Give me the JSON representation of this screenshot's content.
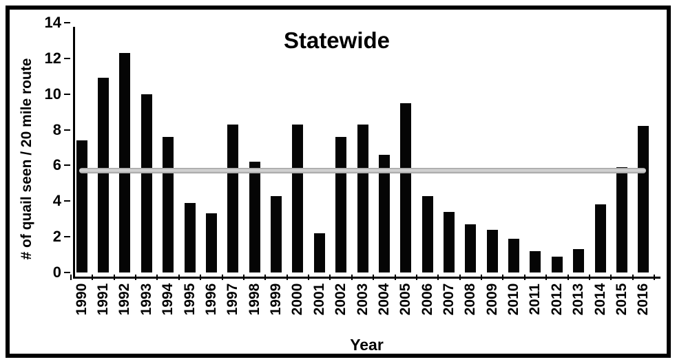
{
  "chart_data": {
    "type": "bar",
    "title": "Statewide",
    "xlabel": "Year",
    "ylabel": "# of quail seen / 20 mile route",
    "categories": [
      "1990",
      "1991",
      "1992",
      "1993",
      "1994",
      "1995",
      "1996",
      "1997",
      "1998",
      "1999",
      "2000",
      "2001",
      "2002",
      "2003",
      "2004",
      "2005",
      "2006",
      "2007",
      "2008",
      "2009",
      "2010",
      "2011",
      "2012",
      "2013",
      "2014",
      "2015",
      "2016"
    ],
    "values": [
      7.4,
      10.9,
      12.3,
      10.0,
      7.6,
      3.9,
      3.3,
      8.3,
      6.2,
      4.3,
      8.3,
      2.2,
      7.6,
      8.3,
      6.6,
      9.5,
      4.3,
      3.4,
      2.7,
      2.4,
      1.9,
      1.2,
      0.9,
      1.3,
      3.8,
      5.9,
      8.2
    ],
    "yticks": [
      0,
      2,
      4,
      6,
      8,
      10,
      12,
      14
    ],
    "ylim": [
      0,
      14
    ],
    "grid": false,
    "legend_position": "none",
    "bar_color": "#050505",
    "mean_line": {
      "value": 5.7,
      "color": "#c0c0c0"
    }
  }
}
